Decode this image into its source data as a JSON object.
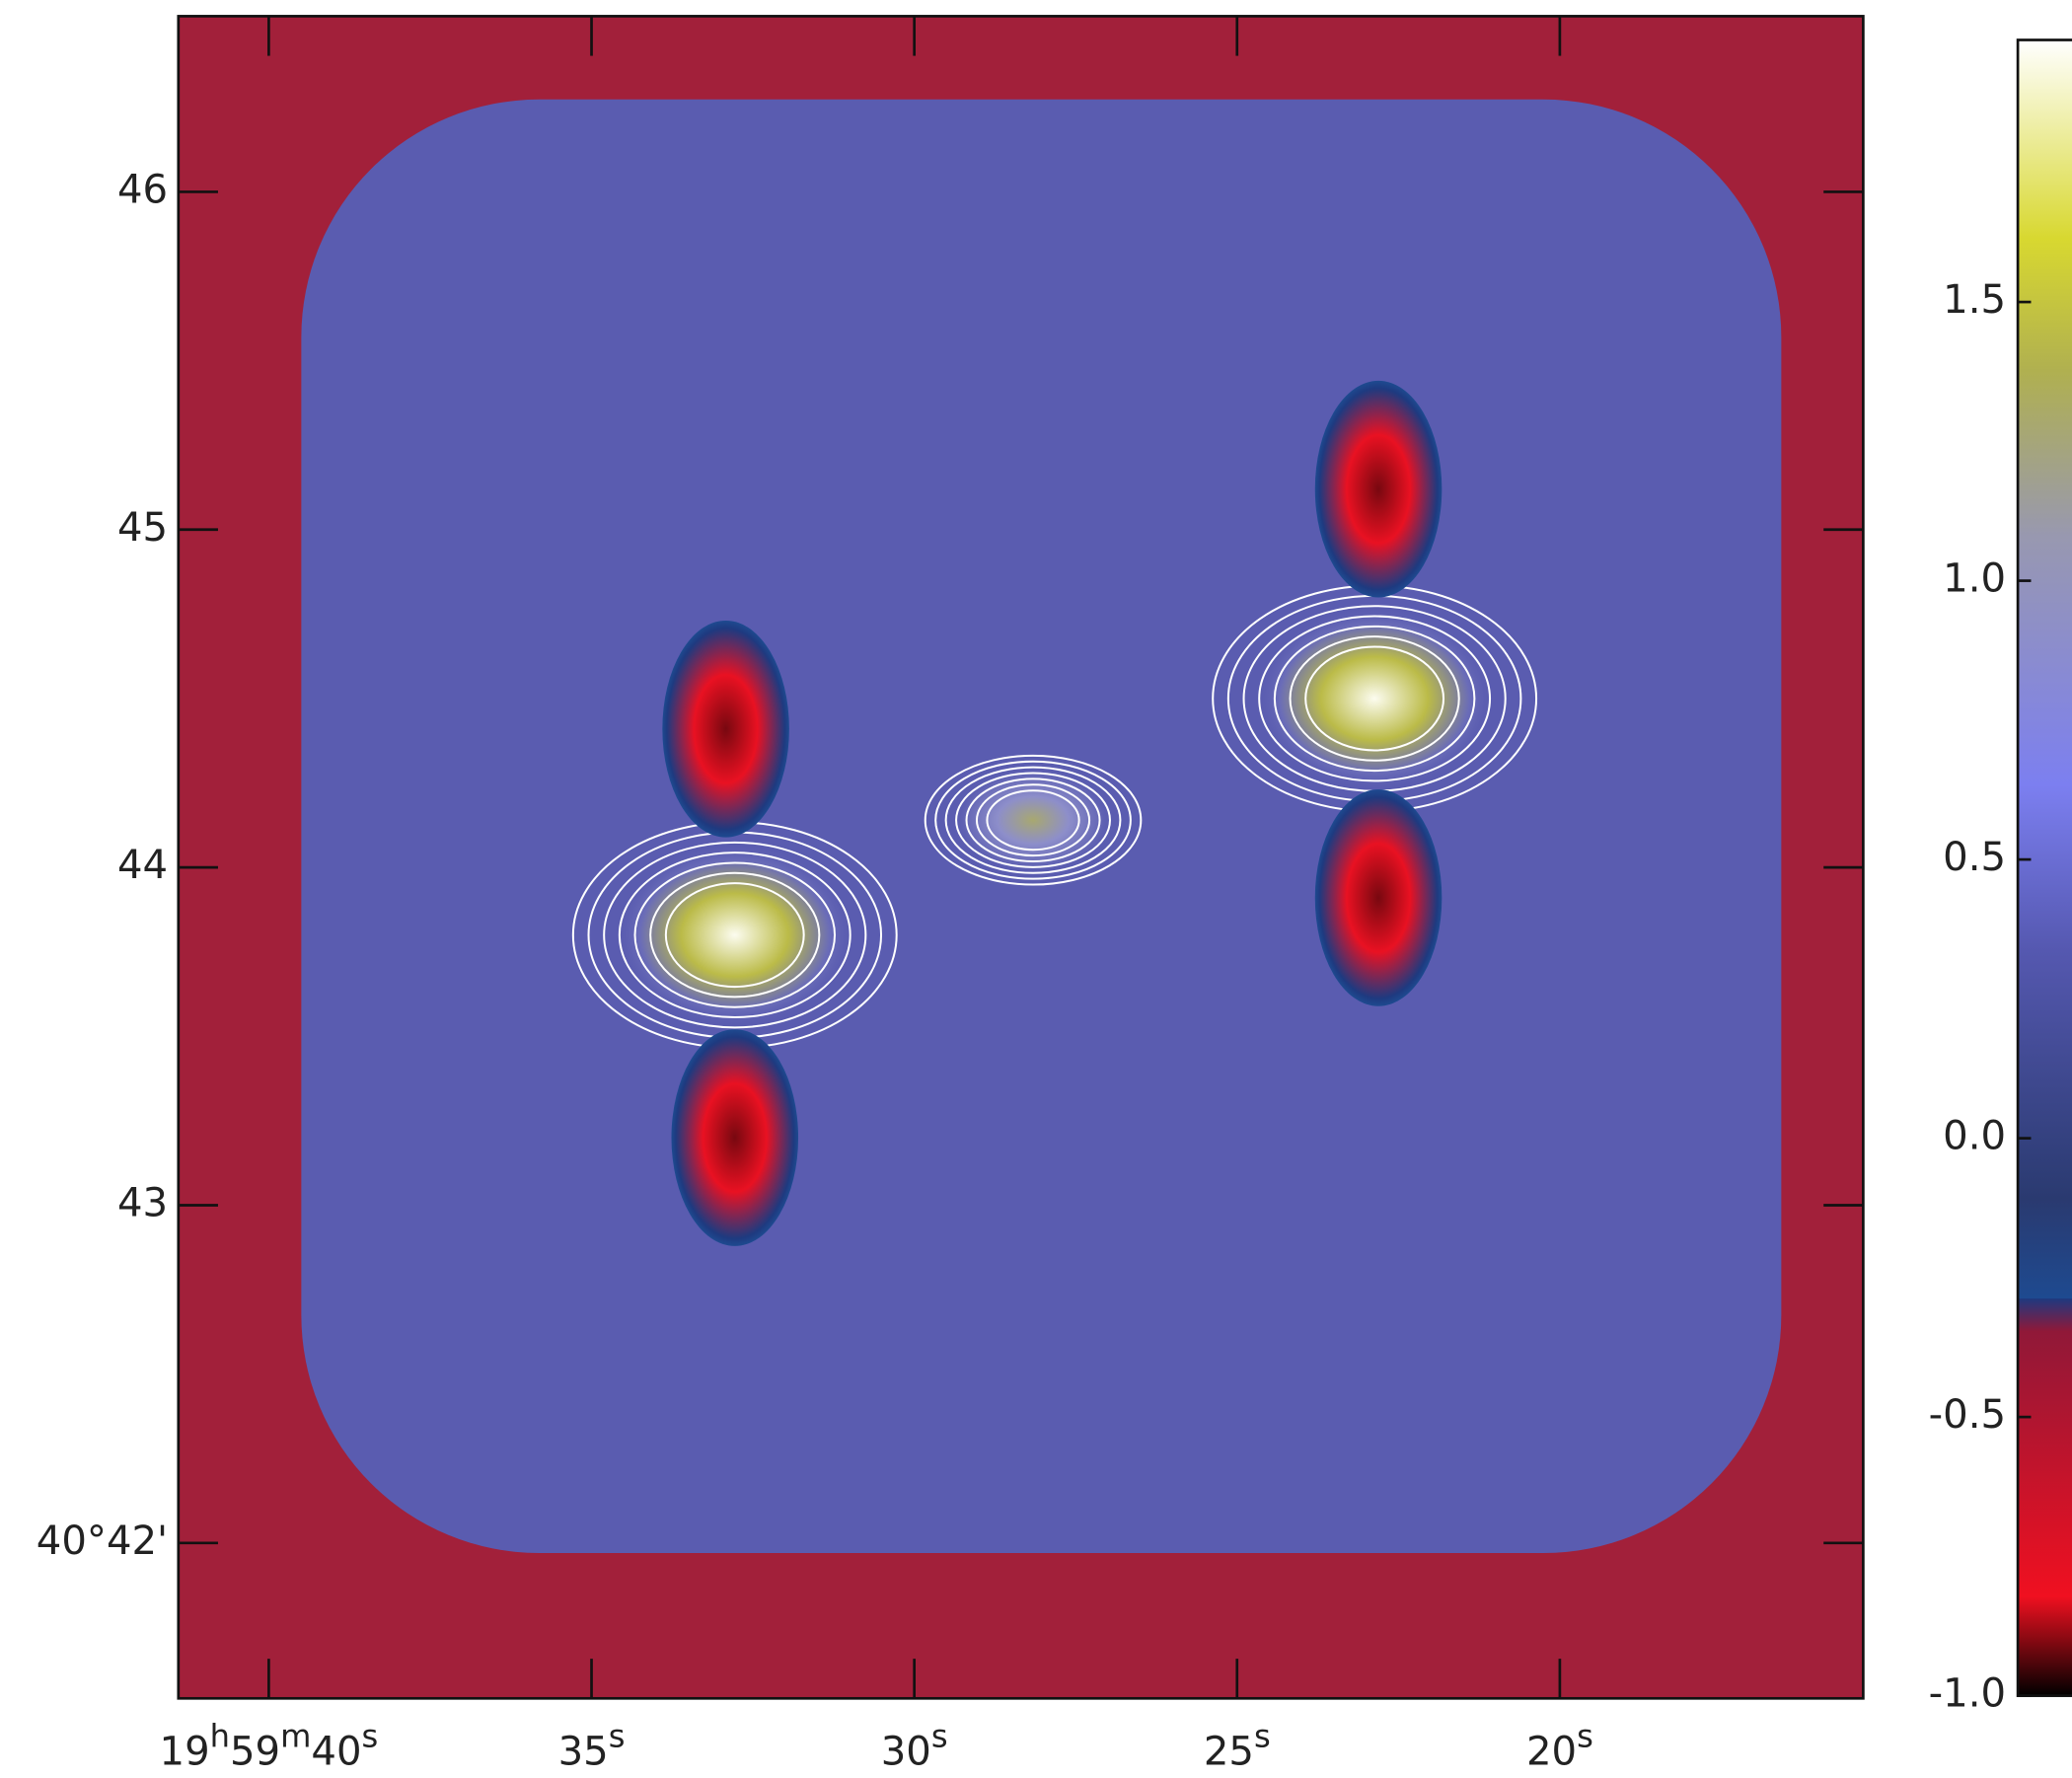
{
  "chart_data": {
    "type": "image",
    "xlim": [
      41.4,
      15.3
    ],
    "xticks": [
      {
        "value": 40,
        "label": "19h59m40s"
      },
      {
        "value": 35,
        "label": "35s"
      },
      {
        "value": 30,
        "label": "30s"
      },
      {
        "value": 25,
        "label": "25s"
      },
      {
        "value": 20,
        "label": "20s"
      }
    ],
    "ylim": [
      41.54,
      46.52
    ],
    "yticks": [
      46,
      45,
      44,
      43,
      {
        "value": 42,
        "label": "40°42'"
      }
    ],
    "sources": {
      "x": [
        32.78,
        22.87,
        28.16,
        32.92,
        32.78,
        22.81,
        22.81
      ],
      "y": [
        43.8,
        44.5,
        44.14,
        44.41,
        43.2,
        45.12,
        43.91
      ],
      "values": [
        1.97,
        1.97,
        1.2,
        -0.9,
        -0.9,
        -0.9,
        -0.9
      ]
    },
    "colorbar": {
      "lim": [
        -1.0,
        1.97
      ],
      "ticks": [
        1.5,
        {
          "value": 1.0,
          "label": "1.0"
        },
        0.5,
        {
          "value": 0.0,
          "label": "0.0"
        },
        -0.5,
        {
          "value": -1.0,
          "label": "-1.0"
        }
      ]
    }
  }
}
